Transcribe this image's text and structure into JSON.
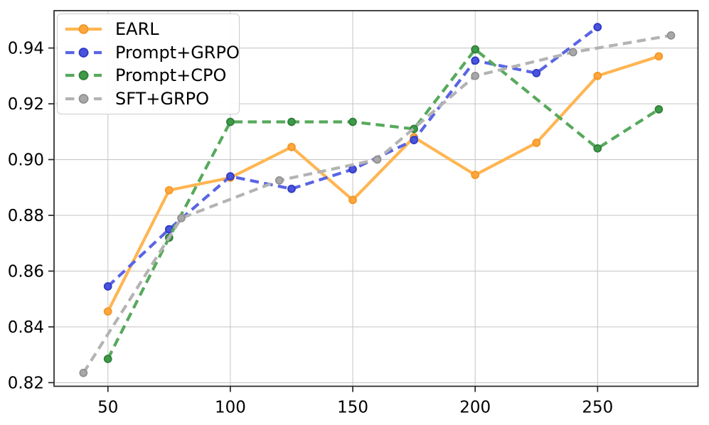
{
  "chart_data": {
    "type": "line",
    "title": "",
    "xlabel": "",
    "ylabel": "",
    "xlim": [
      28,
      291
    ],
    "ylim": [
      0.8187,
      0.9534
    ],
    "xticks": [
      50,
      100,
      150,
      200,
      250
    ],
    "xtick_labels": [
      "50",
      "100",
      "150",
      "200",
      "250"
    ],
    "yticks": [
      0.82,
      0.84,
      0.86,
      0.88,
      0.9,
      0.92,
      0.94
    ],
    "ytick_labels": [
      "0.82",
      "0.84",
      "0.86",
      "0.88",
      "0.90",
      "0.92",
      "0.94"
    ],
    "grid": true,
    "grid_color": "#c9c9c9",
    "spine_color": "#262626",
    "tick_label_color": "#000000",
    "background": "#ffffff",
    "legend": {
      "position": "upper-left",
      "entries": [
        "EARL",
        "Prompt+GRPO",
        "Prompt+CPO",
        "SFT+GRPO"
      ]
    },
    "series": [
      {
        "name": "EARL",
        "line_style": "solid",
        "color": "#ffb552",
        "marker": "circle",
        "marker_fill": "#ffa63e",
        "marker_edge": "#f29422",
        "x": [
          50,
          75,
          100,
          125,
          150,
          175,
          200,
          225,
          250,
          275
        ],
        "y": [
          0.8455,
          0.889,
          0.8935,
          0.9045,
          0.8855,
          0.908,
          0.8945,
          0.906,
          0.93,
          0.937
        ]
      },
      {
        "name": "Prompt+GRPO",
        "line_style": "dashed",
        "color": "#5a64e4",
        "marker": "circle",
        "marker_fill": "#4a53dc",
        "marker_edge": "#2f38c4",
        "x": [
          50,
          75,
          100,
          125,
          150,
          175,
          200,
          225,
          250
        ],
        "y": [
          0.8545,
          0.875,
          0.894,
          0.8895,
          0.8965,
          0.907,
          0.9355,
          0.931,
          0.9475
        ]
      },
      {
        "name": "Prompt+CPO",
        "line_style": "dashed",
        "color": "#57a95c",
        "marker": "circle",
        "marker_fill": "#3d9a48",
        "marker_edge": "#2e7e38",
        "x": [
          50,
          75,
          100,
          125,
          150,
          175,
          200,
          250,
          275
        ],
        "y": [
          0.8285,
          0.872,
          0.9135,
          0.9135,
          0.9135,
          0.911,
          0.9395,
          0.904,
          0.918
        ]
      },
      {
        "name": "SFT+GRPO",
        "line_style": "dashed",
        "color": "#b3b3b3",
        "marker": "circle",
        "marker_fill": "#a8a8a8",
        "marker_edge": "#8f8f8f",
        "x": [
          40,
          80,
          120,
          160,
          200,
          240,
          280
        ],
        "y": [
          0.8235,
          0.879,
          0.8925,
          0.9,
          0.93,
          0.9385,
          0.9445
        ]
      }
    ]
  }
}
